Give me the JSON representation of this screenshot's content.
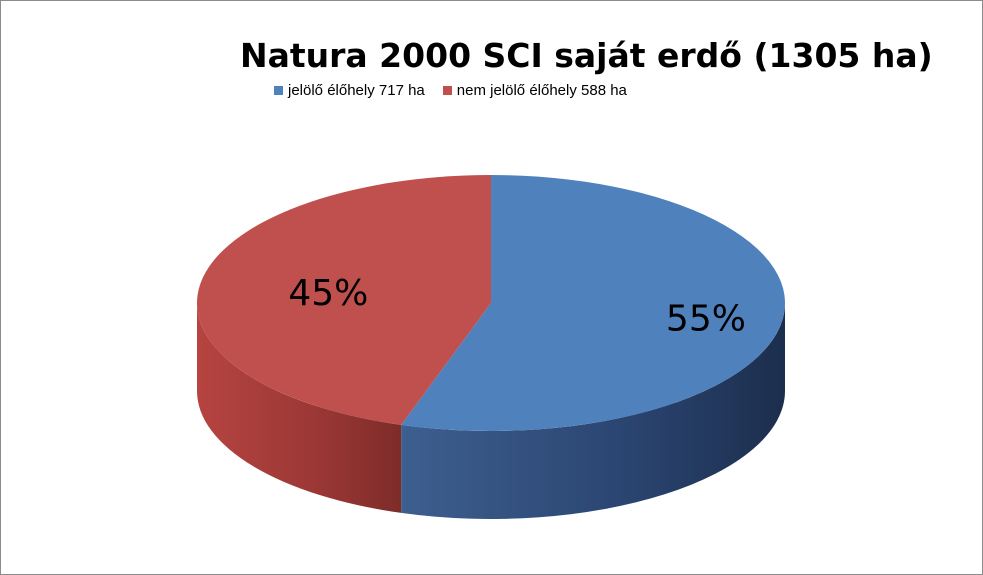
{
  "chart_data": {
    "type": "pie",
    "title": "Natura 2000 SCI saját erdő (1305 ha)",
    "legend_position": "top",
    "series": [
      {
        "name": "jelölő élőhely 717 ha",
        "value": 717,
        "label": "55%",
        "color": "#4f81bd"
      },
      {
        "name": "nem jelölő élőhely  588 ha",
        "value": 588,
        "label": "45%",
        "color": "#c0504d"
      }
    ]
  }
}
